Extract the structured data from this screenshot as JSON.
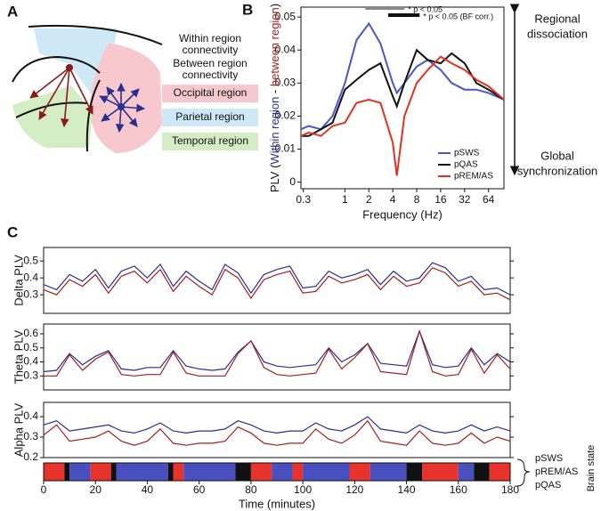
{
  "labels": {
    "a": "A",
    "b": "B",
    "c": "C"
  },
  "diagram": {
    "within": [
      "Within region",
      "connectivity"
    ],
    "between": [
      "Between region",
      "connectivity"
    ],
    "regions": [
      {
        "label": "Occipital region",
        "color": "#f7c9cf"
      },
      {
        "label": "Parietal region",
        "color": "#cfe8f5"
      },
      {
        "label": "Temporal region",
        "color": "#d4edc4"
      }
    ]
  },
  "chart_data": [
    {
      "type": "line",
      "log_x": true,
      "x": [
        0.28,
        0.35,
        0.5,
        0.7,
        1,
        1.4,
        2,
        2.8,
        4,
        4.5,
        5.6,
        8,
        11,
        16,
        22,
        32,
        45,
        64,
        100
      ],
      "series": [
        {
          "name": "pSWS",
          "color": "#4a56c8",
          "values": [
            0.016,
            0.017,
            0.016,
            0.02,
            0.03,
            0.043,
            0.048,
            0.042,
            0.03,
            0.027,
            0.03,
            0.035,
            0.037,
            0.034,
            0.03,
            0.028,
            0.028,
            0.027,
            0.025
          ]
        },
        {
          "name": "pQAS",
          "color": "#111111",
          "values": [
            0.014,
            0.014,
            0.016,
            0.018,
            0.028,
            0.031,
            0.034,
            0.036,
            0.026,
            0.023,
            0.03,
            0.04,
            0.037,
            0.036,
            0.039,
            0.036,
            0.03,
            0.028,
            0.025
          ]
        },
        {
          "name": "pREM/AS",
          "color": "#e0321f",
          "values": [
            0.014,
            0.015,
            0.014,
            0.017,
            0.018,
            0.024,
            0.025,
            0.024,
            0.012,
            0.002,
            0.02,
            0.03,
            0.034,
            0.038,
            0.036,
            0.034,
            0.031,
            0.029,
            0.025
          ]
        }
      ],
      "xlim": [
        0.28,
        100
      ],
      "ylim": [
        -0.002,
        0.053
      ],
      "xticks": [
        0.3,
        1,
        2,
        4,
        8,
        16,
        32,
        64
      ],
      "yticks": [
        0,
        0.01,
        0.02,
        0.03,
        0.04,
        0.05
      ],
      "xlabel": "Frequency (Hz)",
      "ylabel": [
        "PLV (",
        "Within region",
        " - ",
        "between region",
        ")"
      ],
      "ylabel_colors": [
        "#111111",
        "#2b2f8f",
        "#111111",
        "#a31f1f",
        "#111111"
      ],
      "legend": "lower right",
      "significance": [
        {
          "range": [
            1.8,
            5.6
          ],
          "label": "* p < 0.05",
          "color": "#888888"
        },
        {
          "range": [
            3.5,
            8.7
          ],
          "label": "* p < 0.05 (BF corr.)",
          "color": "#111111"
        }
      ],
      "annotations": {
        "top": [
          "Regional",
          "dissociation"
        ],
        "bottom": [
          "Global",
          "synchronization"
        ]
      }
    },
    {
      "type": "line",
      "x": [
        0,
        5,
        10,
        15,
        20,
        25,
        30,
        35,
        40,
        45,
        50,
        55,
        60,
        65,
        70,
        75,
        80,
        85,
        90,
        95,
        100,
        105,
        110,
        115,
        120,
        125,
        130,
        135,
        140,
        145,
        150,
        155,
        160,
        165,
        170,
        175,
        180
      ],
      "series": [
        {
          "color": "#2b2f8f",
          "values": [
            0.36,
            0.33,
            0.42,
            0.38,
            0.45,
            0.34,
            0.44,
            0.47,
            0.4,
            0.48,
            0.35,
            0.44,
            0.38,
            0.33,
            0.48,
            0.43,
            0.31,
            0.42,
            0.45,
            0.47,
            0.34,
            0.35,
            0.44,
            0.4,
            0.42,
            0.45,
            0.36,
            0.44,
            0.38,
            0.4,
            0.49,
            0.46,
            0.38,
            0.41,
            0.33,
            0.34,
            0.3
          ]
        },
        {
          "color": "#a31f1f",
          "values": [
            0.33,
            0.3,
            0.39,
            0.35,
            0.42,
            0.31,
            0.41,
            0.44,
            0.37,
            0.45,
            0.32,
            0.41,
            0.35,
            0.3,
            0.45,
            0.4,
            0.28,
            0.39,
            0.42,
            0.44,
            0.31,
            0.32,
            0.41,
            0.37,
            0.39,
            0.42,
            0.33,
            0.41,
            0.35,
            0.37,
            0.46,
            0.43,
            0.35,
            0.38,
            0.3,
            0.31,
            0.27
          ]
        }
      ],
      "xlim": [
        0,
        180
      ],
      "ylim": [
        0.19,
        0.58
      ],
      "yticks": [
        0.3,
        0.4,
        0.5
      ],
      "ylabel": "Delta PLV"
    },
    {
      "type": "line",
      "x": [
        0,
        5,
        10,
        15,
        20,
        25,
        30,
        35,
        40,
        45,
        50,
        55,
        60,
        65,
        70,
        75,
        80,
        85,
        90,
        95,
        100,
        105,
        110,
        115,
        120,
        125,
        130,
        135,
        140,
        145,
        150,
        155,
        160,
        165,
        170,
        175,
        180
      ],
      "series": [
        {
          "color": "#2b2f8f",
          "values": [
            0.33,
            0.34,
            0.46,
            0.38,
            0.44,
            0.48,
            0.35,
            0.34,
            0.36,
            0.36,
            0.48,
            0.37,
            0.35,
            0.34,
            0.35,
            0.47,
            0.55,
            0.4,
            0.37,
            0.36,
            0.37,
            0.38,
            0.5,
            0.4,
            0.45,
            0.53,
            0.39,
            0.38,
            0.37,
            0.62,
            0.38,
            0.36,
            0.37,
            0.5,
            0.38,
            0.46,
            0.4
          ]
        },
        {
          "color": "#a31f1f",
          "values": [
            0.3,
            0.3,
            0.45,
            0.34,
            0.42,
            0.47,
            0.31,
            0.3,
            0.31,
            0.31,
            0.47,
            0.32,
            0.3,
            0.3,
            0.3,
            0.46,
            0.55,
            0.36,
            0.31,
            0.3,
            0.31,
            0.32,
            0.49,
            0.35,
            0.43,
            0.53,
            0.33,
            0.32,
            0.31,
            0.62,
            0.33,
            0.3,
            0.31,
            0.49,
            0.32,
            0.45,
            0.35
          ]
        }
      ],
      "xlim": [
        0,
        180
      ],
      "ylim": [
        0.2,
        0.67
      ],
      "yticks": [
        0.3,
        0.4,
        0.5,
        0.6
      ],
      "ylabel": "Theta PLV"
    },
    {
      "type": "line",
      "x": [
        0,
        5,
        10,
        15,
        20,
        25,
        30,
        35,
        40,
        45,
        50,
        55,
        60,
        65,
        70,
        75,
        80,
        85,
        90,
        95,
        100,
        105,
        110,
        115,
        120,
        125,
        130,
        135,
        140,
        145,
        150,
        155,
        160,
        165,
        170,
        175,
        180
      ],
      "series": [
        {
          "color": "#2b2f8f",
          "values": [
            0.36,
            0.38,
            0.33,
            0.34,
            0.35,
            0.36,
            0.33,
            0.32,
            0.34,
            0.37,
            0.33,
            0.32,
            0.33,
            0.33,
            0.34,
            0.38,
            0.36,
            0.33,
            0.32,
            0.33,
            0.33,
            0.37,
            0.34,
            0.33,
            0.36,
            0.4,
            0.34,
            0.33,
            0.32,
            0.36,
            0.33,
            0.32,
            0.33,
            0.36,
            0.33,
            0.35,
            0.33
          ]
        },
        {
          "color": "#a31f1f",
          "values": [
            0.31,
            0.36,
            0.28,
            0.29,
            0.3,
            0.33,
            0.28,
            0.26,
            0.28,
            0.34,
            0.27,
            0.26,
            0.27,
            0.27,
            0.28,
            0.35,
            0.32,
            0.27,
            0.26,
            0.27,
            0.27,
            0.34,
            0.29,
            0.27,
            0.31,
            0.38,
            0.28,
            0.27,
            0.26,
            0.33,
            0.27,
            0.26,
            0.27,
            0.32,
            0.27,
            0.3,
            0.28
          ]
        }
      ],
      "xlim": [
        0,
        180
      ],
      "ylim": [
        0.2,
        0.47
      ],
      "yticks": [
        0.2,
        0.3,
        0.4
      ],
      "ylabel": "Alpha PLV"
    },
    {
      "type": "state_bar",
      "xlim": [
        0,
        180
      ],
      "xticks": [
        0,
        20,
        40,
        60,
        80,
        100,
        120,
        140,
        160,
        180
      ],
      "xlabel": "Time (minutes)",
      "states": [
        {
          "name": "pSWS",
          "color": "#4a4fc0"
        },
        {
          "name": "pREM/AS",
          "color": "#e8322c"
        },
        {
          "name": "pQAS",
          "color": "#111111"
        }
      ],
      "state_title": "Brain state",
      "segments": [
        [
          0,
          8,
          1
        ],
        [
          8,
          10,
          2
        ],
        [
          10,
          18,
          0
        ],
        [
          18,
          26,
          1
        ],
        [
          26,
          28,
          2
        ],
        [
          28,
          48,
          0
        ],
        [
          48,
          50,
          2
        ],
        [
          50,
          54,
          1
        ],
        [
          54,
          74,
          0
        ],
        [
          74,
          80,
          2
        ],
        [
          80,
          88,
          1
        ],
        [
          88,
          96,
          0
        ],
        [
          96,
          100,
          1
        ],
        [
          100,
          118,
          0
        ],
        [
          118,
          126,
          1
        ],
        [
          126,
          140,
          0
        ],
        [
          140,
          146,
          2
        ],
        [
          146,
          160,
          1
        ],
        [
          160,
          166,
          0
        ],
        [
          166,
          172,
          2
        ],
        [
          172,
          180,
          1
        ]
      ]
    }
  ]
}
